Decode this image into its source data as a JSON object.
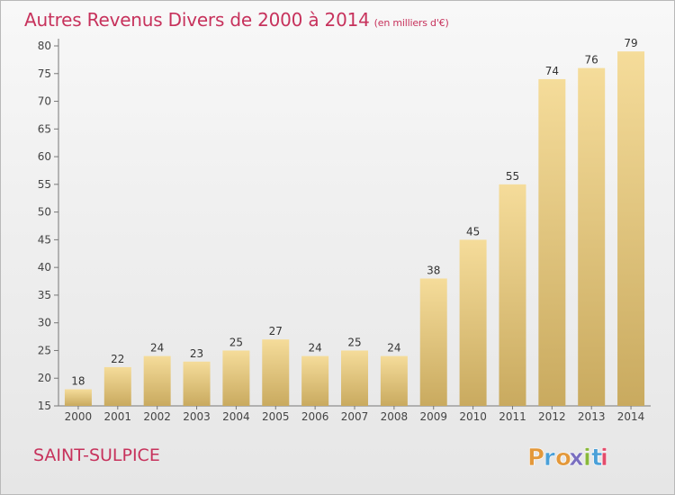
{
  "chart_data": {
    "type": "bar",
    "title": "Autres Revenus Divers de 2000 à 2014",
    "subtitle": "(en milliers d'€)",
    "categories": [
      "2000",
      "2001",
      "2002",
      "2003",
      "2004",
      "2005",
      "2006",
      "2007",
      "2008",
      "2009",
      "2010",
      "2011",
      "2012",
      "2013",
      "2014"
    ],
    "values": [
      18,
      22,
      24,
      23,
      25,
      27,
      24,
      25,
      24,
      38,
      45,
      55,
      74,
      76,
      79
    ],
    "ylim": [
      15,
      80
    ],
    "yticks": [
      "15",
      "20",
      "25",
      "30",
      "35",
      "40",
      "45",
      "50",
      "55",
      "60",
      "65",
      "70",
      "75",
      "80"
    ],
    "grid": false,
    "bar_color": "#e8c97c",
    "title_color": "#c7325c"
  },
  "place_name": "SAINT-SULPICE",
  "logo": {
    "letters": [
      "P",
      "r",
      "o",
      "x",
      "i",
      "t",
      "i"
    ],
    "colors": [
      "#e3983a",
      "#4aa0d8",
      "#e3983a",
      "#7a6fc0",
      "#88b83a",
      "#4aa0d8",
      "#e34c6b"
    ]
  }
}
